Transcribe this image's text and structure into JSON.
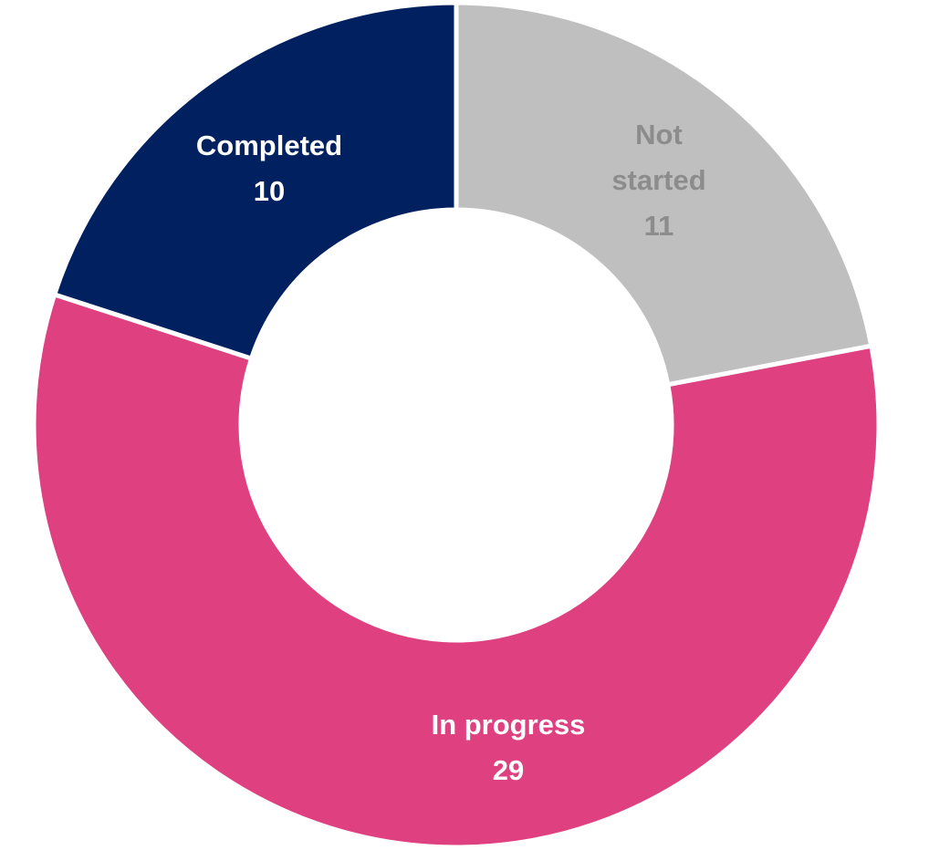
{
  "chart_data": {
    "type": "donut",
    "categories": [
      "Not started",
      "In progress",
      "Completed"
    ],
    "values": [
      11,
      29,
      10
    ],
    "colors": [
      "#bfbfbf",
      "#de4080",
      "#002060"
    ]
  }
}
